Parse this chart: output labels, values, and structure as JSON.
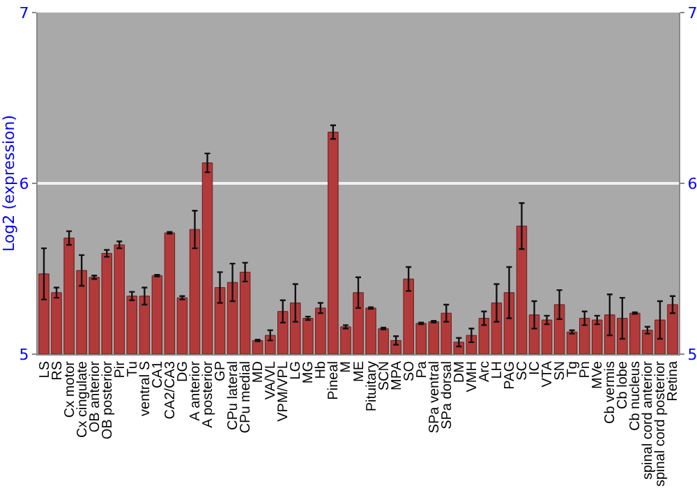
{
  "chart_data": {
    "type": "bar",
    "ylabel": "Log2 (expression)",
    "categories": [
      "LS",
      "RS",
      "Cx motor",
      "Cx cingulate",
      "OB anterior",
      "OB posterior",
      "Pir",
      "Tu",
      "ventral S",
      "CA1",
      "CA2/CA3",
      "DG",
      "A anterior",
      "A posterior",
      "GP",
      "CPu lateral",
      "CPu medial",
      "MD",
      "VA/VL",
      "VPM/VPL",
      "LG",
      "MG",
      "Hb",
      "Pineal",
      "M",
      "ME",
      "Pituitary",
      "SCN",
      "MPA",
      "SO",
      "Pa",
      "SPa ventral",
      "SPa dorsal",
      "DM",
      "VMH",
      "Arc",
      "LH",
      "PAG",
      "SC",
      "IC",
      "VTA",
      "SN",
      "Tg",
      "Pn",
      "MVe",
      "Cb vermis",
      "Cb lobe",
      "Cb nucleus",
      "spinal cord anterior",
      "spinal cord posterior",
      "Retina"
    ],
    "values": [
      5.47,
      5.36,
      5.68,
      5.49,
      5.45,
      5.59,
      5.64,
      5.34,
      5.34,
      5.46,
      5.71,
      5.33,
      5.73,
      6.12,
      5.39,
      5.42,
      5.48,
      5.08,
      5.11,
      5.25,
      5.3,
      5.21,
      5.27,
      6.3,
      5.16,
      5.36,
      5.27,
      5.15,
      5.08,
      5.44,
      5.18,
      5.19,
      5.24,
      5.07,
      5.11,
      5.21,
      5.3,
      5.36,
      5.75,
      5.23,
      5.2,
      5.29,
      5.13,
      5.21,
      5.2,
      5.23,
      5.21,
      5.24,
      5.14,
      5.2,
      5.29
    ],
    "errors": [
      0.15,
      0.03,
      0.04,
      0.09,
      0.01,
      0.02,
      0.02,
      0.025,
      0.05,
      0.005,
      0.005,
      0.01,
      0.11,
      0.055,
      0.09,
      0.11,
      0.055,
      0.005,
      0.03,
      0.065,
      0.11,
      0.01,
      0.03,
      0.04,
      0.01,
      0.09,
      0.005,
      0.005,
      0.025,
      0.07,
      0.005,
      0.005,
      0.05,
      0.025,
      0.04,
      0.04,
      0.11,
      0.15,
      0.135,
      0.08,
      0.025,
      0.085,
      0.01,
      0.04,
      0.025,
      0.12,
      0.12,
      0.005,
      0.02,
      0.11,
      0.05
    ],
    "color": "#b33a3a",
    "ylim": [
      5,
      7
    ],
    "yticks": [
      5,
      6,
      7
    ],
    "y2lim": [
      5,
      7
    ],
    "y2ticks": [
      5,
      6,
      7
    ],
    "grid": "y"
  }
}
